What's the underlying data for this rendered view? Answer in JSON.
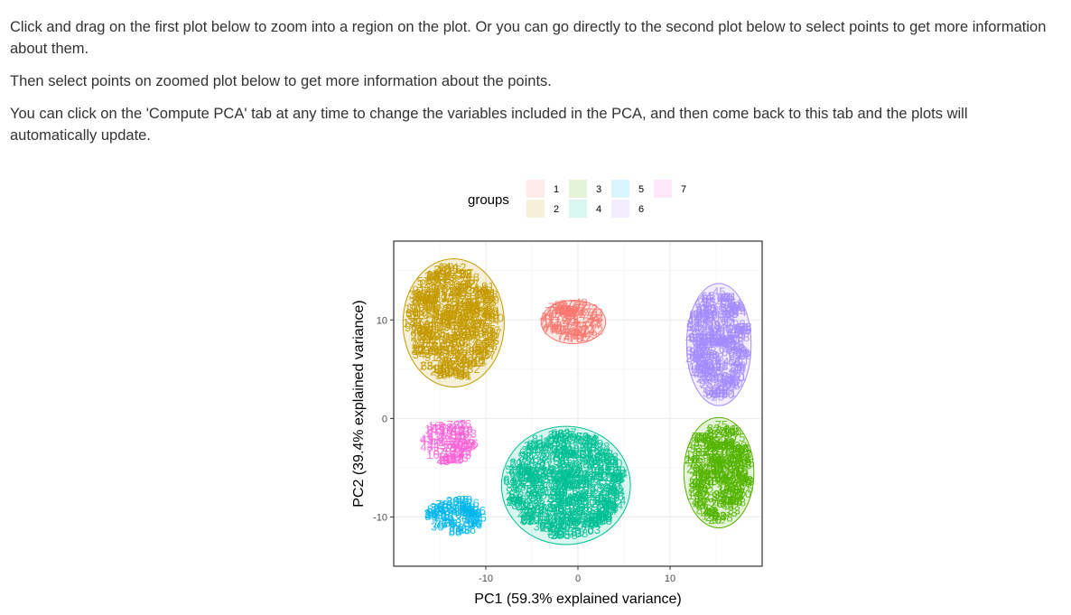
{
  "instructions": {
    "p1": "Click and drag on the first plot below to zoom into a region on the plot. Or you can go directly to the second plot below to select points to get more information about them.",
    "p2": "Then select points on zoomed plot below to get more information about the points.",
    "p3": "You can click on the 'Compute PCA' tab at any time to change the variables included in the PCA, and then come back to this tab and the plots will automatically update."
  },
  "chart_data": {
    "type": "scatter",
    "xlabel": "PC1 (59.3% explained variance)",
    "ylabel": "PC2 (39.4% explained variance)",
    "xlim": [
      -20,
      20
    ],
    "ylim": [
      -15,
      18
    ],
    "xticks": [
      -10,
      0,
      10
    ],
    "yticks": [
      -10,
      0,
      10
    ],
    "grid": true,
    "legend": {
      "title": "groups",
      "position": "top",
      "labels": [
        "1",
        "2",
        "3",
        "4",
        "5",
        "6",
        "7"
      ]
    },
    "points_marked_with": "row index numbers (text labels)",
    "series": [
      {
        "name": "1",
        "color": "#F8766D",
        "center": [
          -0.5,
          9.8
        ],
        "radius": [
          3.5,
          2.2
        ],
        "ellipse": true,
        "sample_labels": [
          "74",
          "73",
          "41",
          "72",
          "77",
          "49"
        ]
      },
      {
        "name": "2",
        "color": "#C49A00",
        "center": [
          -13.5,
          9.7
        ],
        "radius": [
          5.5,
          6.5
        ],
        "ellipse": true,
        "sample_labels": [
          "37",
          "23",
          "19",
          "34",
          "1",
          "2",
          "32",
          "18",
          "14",
          "66",
          "96",
          "91",
          "10",
          "12",
          "57",
          "35",
          "26",
          "89"
        ]
      },
      {
        "name": "3",
        "color": "#53B400",
        "center": [
          15.3,
          -5.5
        ],
        "radius": [
          3.8,
          5.6
        ],
        "ellipse": true,
        "sample_labels": [
          "75",
          "20",
          "48",
          "33",
          "82",
          "16"
        ]
      },
      {
        "name": "4",
        "color": "#00C094",
        "center": [
          -1.3,
          -6.8
        ],
        "radius": [
          7.0,
          6.0
        ],
        "ellipse": true,
        "sample_labels": [
          "24",
          "29",
          "38",
          "27",
          "58",
          "70",
          "63",
          "81"
        ]
      },
      {
        "name": "5",
        "color": "#00B6EB",
        "center": [
          -13.2,
          -9.9
        ],
        "radius": [
          3.2,
          2.0
        ],
        "ellipse": false,
        "sample_labels": [
          "76",
          "36",
          "88"
        ]
      },
      {
        "name": "6",
        "color": "#A58AFF",
        "center": [
          15.3,
          7.5
        ],
        "radius": [
          3.5,
          6.2
        ],
        "ellipse": true,
        "sample_labels": [
          "65",
          "98",
          "28",
          "44",
          "60",
          "45",
          "51"
        ]
      },
      {
        "name": "7",
        "color": "#FB61D7",
        "center": [
          -14.0,
          -2.3
        ],
        "radius": [
          3.0,
          2.5
        ],
        "ellipse": false,
        "sample_labels": [
          "43",
          "16",
          "2",
          "78"
        ]
      }
    ]
  }
}
